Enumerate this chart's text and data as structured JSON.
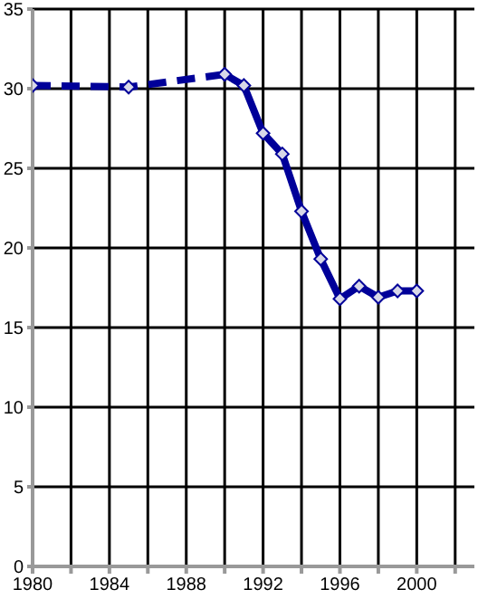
{
  "chart_data": {
    "type": "line",
    "xlim": [
      1980,
      2003
    ],
    "ylim": [
      0,
      35
    ],
    "xticks": [
      1980,
      {
        "value": 1982,
        "label": null
      },
      1984,
      {
        "value": 1986,
        "label": null
      },
      1988,
      {
        "value": 1990,
        "label": null
      },
      1992,
      {
        "value": 1994,
        "label": null
      },
      1996,
      {
        "value": 1998,
        "label": null
      },
      2000,
      {
        "value": 2002,
        "label": null
      }
    ],
    "yticks": [
      0,
      5,
      10,
      15,
      20,
      25,
      30,
      35
    ],
    "grid": true,
    "marker": "diamond",
    "series": [
      {
        "color": "#000099",
        "line_style": "dashed",
        "x": [
          1980,
          1985,
          1990
        ],
        "values": [
          30.2,
          30.1,
          30.9
        ]
      },
      {
        "color": "#000099",
        "line_style": "solid",
        "x": [
          1990,
          1991,
          1992,
          1993,
          1994,
          1995,
          1996,
          1997,
          1998,
          1999,
          2000
        ],
        "values": [
          30.9,
          30.2,
          27.2,
          25.9,
          22.3,
          19.3,
          16.8,
          17.6,
          16.9,
          17.3,
          17.3
        ]
      }
    ]
  }
}
